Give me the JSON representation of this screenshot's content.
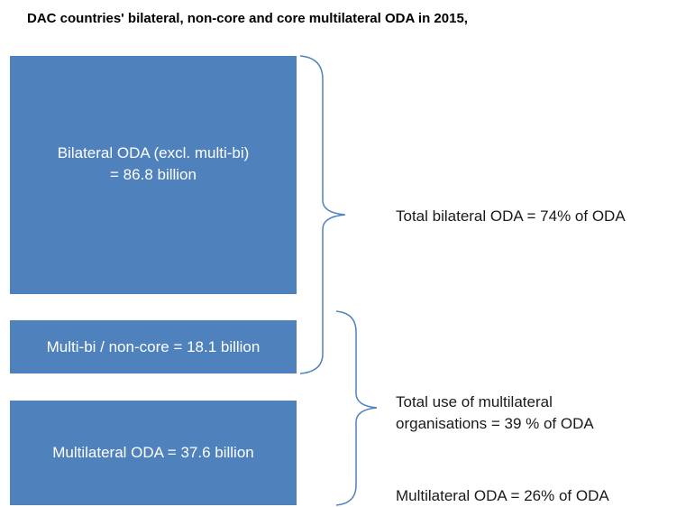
{
  "title": "DAC countries' bilateral, non-core and core multilateral ODA in 2015,",
  "boxes": [
    {
      "lines": [
        "Bilateral ODA (excl. multi-bi)",
        "= 86.8 billion"
      ]
    },
    {
      "lines": [
        "Multi-bi / non-core = 18.1 billion"
      ]
    },
    {
      "lines": [
        "Multilateral ODA = 37.6 billion"
      ]
    }
  ],
  "annotations": [
    {
      "lines": [
        "Total bilateral ODA = 74% of ODA"
      ]
    },
    {
      "lines": [
        "Total use of multilateral",
        "organisations = 39 % of ODA"
      ]
    },
    {
      "lines": [
        "Multilateral ODA = 26% of ODA"
      ]
    }
  ]
}
